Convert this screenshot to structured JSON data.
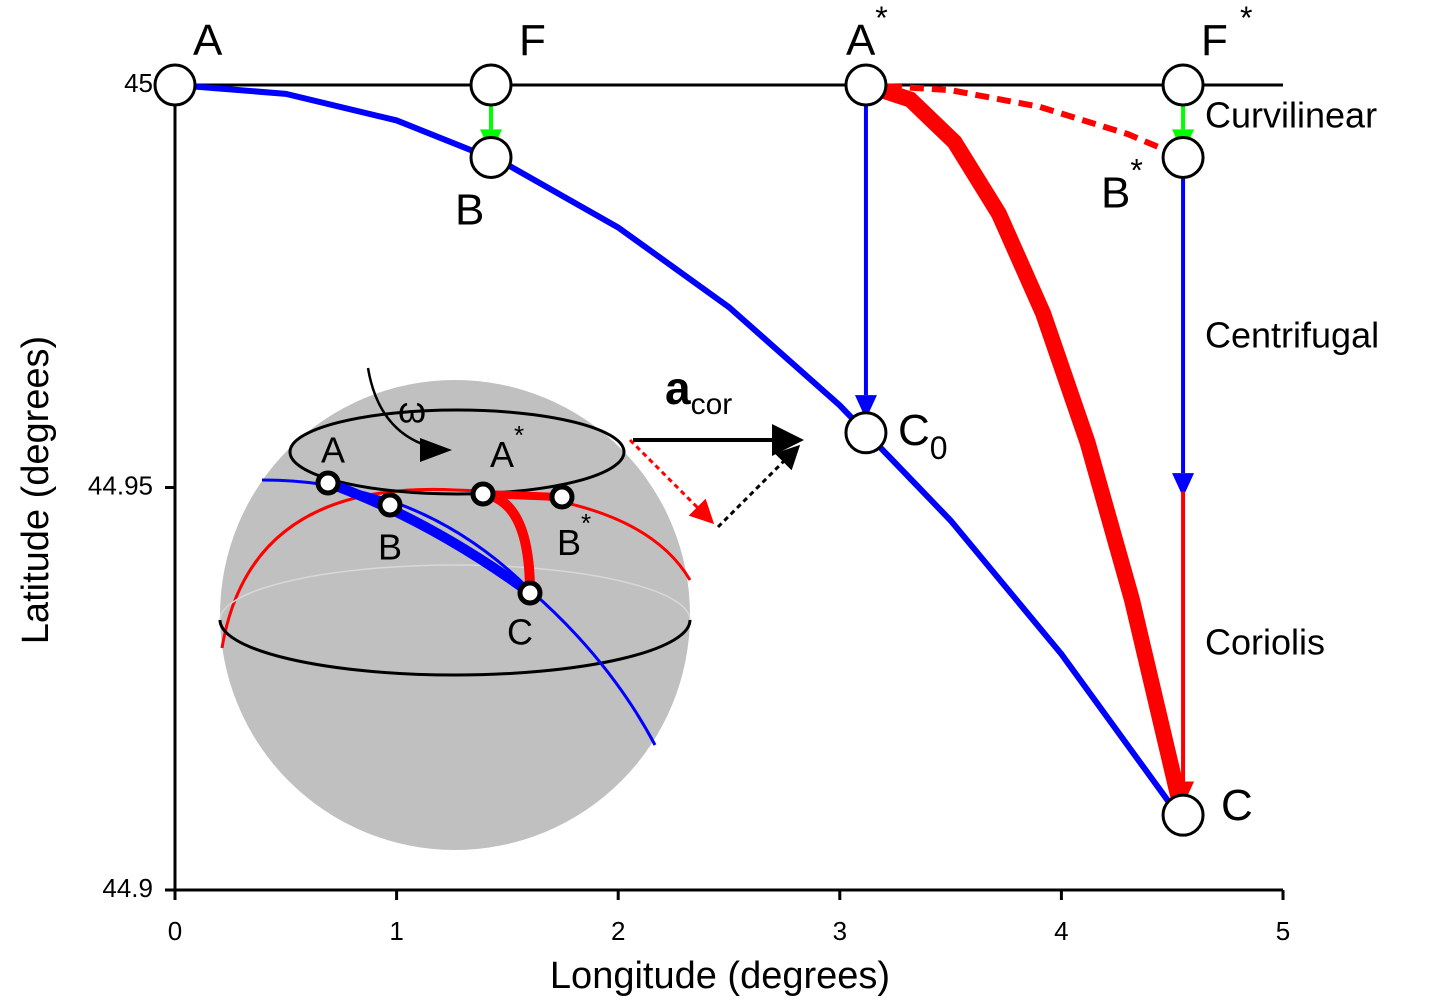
{
  "chart_data": {
    "type": "line",
    "xlabel": "Longitude (degrees)",
    "ylabel": "Latitude (degrees)",
    "xlim": [
      0,
      5
    ],
    "ylim": [
      44.9,
      45
    ],
    "xticks": [
      0,
      1,
      2,
      3,
      4,
      5
    ],
    "yticks": [
      44.9,
      44.95,
      45
    ],
    "series": [
      {
        "color": "#000000",
        "width": 3,
        "style": "solid",
        "x": [
          0,
          5
        ],
        "values": [
          45,
          45
        ]
      },
      {
        "color": "#0000ff",
        "width": 6,
        "style": "solid",
        "x": [
          0,
          0.5,
          1,
          1.5,
          2,
          2.5,
          3,
          3.5,
          4,
          4.549
        ],
        "values": [
          45,
          44.9989,
          44.9956,
          44.9901,
          44.9823,
          44.9724,
          44.9602,
          44.9459,
          44.9293,
          44.9085
        ]
      },
      {
        "color": "#ff0000",
        "width": 16,
        "style": "solid",
        "x": [
          3.118,
          3.318,
          3.518,
          3.718,
          3.918,
          4.118,
          4.318,
          4.549
        ],
        "values": [
          45,
          44.9982,
          44.9929,
          44.984,
          44.9716,
          44.9556,
          44.9361,
          44.9091
        ]
      },
      {
        "color": "#ff0000",
        "width": 6,
        "style": "dashed",
        "x": [
          3.118,
          3.5,
          3.9,
          4.3,
          4.549
        ],
        "values": [
          45,
          44.99936,
          44.9973,
          44.9939,
          44.991
        ]
      }
    ],
    "points": [
      {
        "x": 0,
        "y": 45,
        "label": "A"
      },
      {
        "x": 1.426,
        "y": 45,
        "label": "F"
      },
      {
        "x": 1.426,
        "y": 44.991,
        "label": "B"
      },
      {
        "x": 3.118,
        "y": 45,
        "label": "A",
        "sup": "*"
      },
      {
        "x": 4.549,
        "y": 45,
        "label": "F",
        "sup": "*"
      },
      {
        "x": 4.549,
        "y": 44.991,
        "label": "B",
        "sup": "*"
      },
      {
        "x": 3.118,
        "y": 44.9568,
        "label": "C",
        "sub": "0"
      },
      {
        "x": 4.549,
        "y": 44.9093,
        "label": "C"
      }
    ],
    "arrows": [
      {
        "x": 1.426,
        "y1": 45,
        "y2": 44.9915,
        "color": "#00ff00"
      },
      {
        "x": 4.549,
        "y1": 45,
        "y2": 44.9915,
        "color": "#00ff00"
      },
      {
        "x": 3.118,
        "y1": 45,
        "y2": 44.9585,
        "color": "#0000ff"
      },
      {
        "x": 4.549,
        "y1": 44.991,
        "y2": 44.9488,
        "color": "#0000ff"
      },
      {
        "x": 4.549,
        "y1": 44.9495,
        "y2": 44.9105,
        "color": "#ff0000"
      }
    ],
    "annotations": [
      "Curvilinear",
      "Centrifugal",
      "Coriolis"
    ],
    "inset": {
      "omega": "ω",
      "acceleration": "a",
      "acceleration_sub": "cor",
      "labels": [
        {
          "label": "A"
        },
        {
          "label": "B"
        },
        {
          "label": "A",
          "sup": "*"
        },
        {
          "label": "B",
          "sup": "*"
        },
        {
          "label": "C"
        }
      ]
    }
  }
}
